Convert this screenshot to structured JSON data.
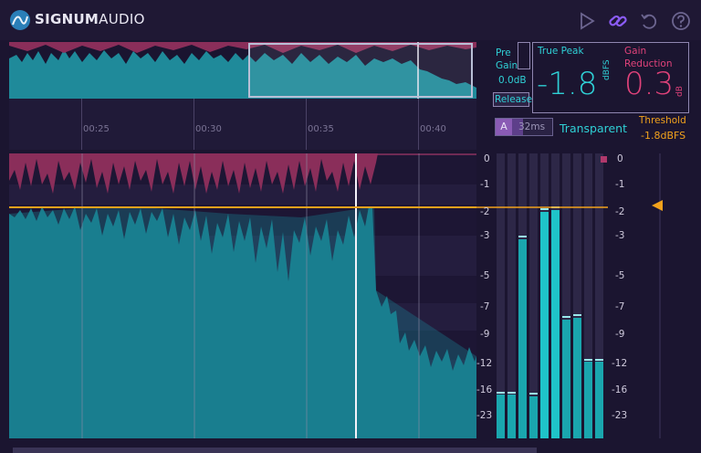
{
  "brand": {
    "name_bold": "SIGNUM",
    "name_rest": "AUDIO"
  },
  "toolbar": {
    "icons": [
      "play-icon",
      "link-icon",
      "undo-icon",
      "help-icon"
    ],
    "link_color": "#8b5cf6"
  },
  "timeline": {
    "ticks": [
      "00:25",
      "00:30",
      "00:35",
      "00:40"
    ]
  },
  "controls": {
    "pre_gain_label_1": "Pre",
    "pre_gain_label_2": "Gain",
    "pre_gain_value": "0.0dB",
    "release_label": "Release",
    "release_mode": "A",
    "release_value": "32ms",
    "character": "Transparent",
    "true_peak_label": "True Peak",
    "true_peak_value": "-1.8",
    "true_peak_unit": "dBFS",
    "gain_reduction_label_1": "Gain",
    "gain_reduction_label_2": "Reduction",
    "gain_reduction_value": "0.3",
    "gain_reduction_unit": "dB",
    "threshold_label": "Threshold",
    "threshold_value": "-1.8dBFS"
  },
  "meter_scale": [
    "0",
    "-1",
    "-2",
    "-3",
    "-5",
    "-7",
    "-9",
    "-12",
    "-16",
    "-23"
  ],
  "colors": {
    "accent_teal": "#1fc3c9",
    "accent_pink": "#e0427a",
    "threshold": "#f2a21c"
  }
}
